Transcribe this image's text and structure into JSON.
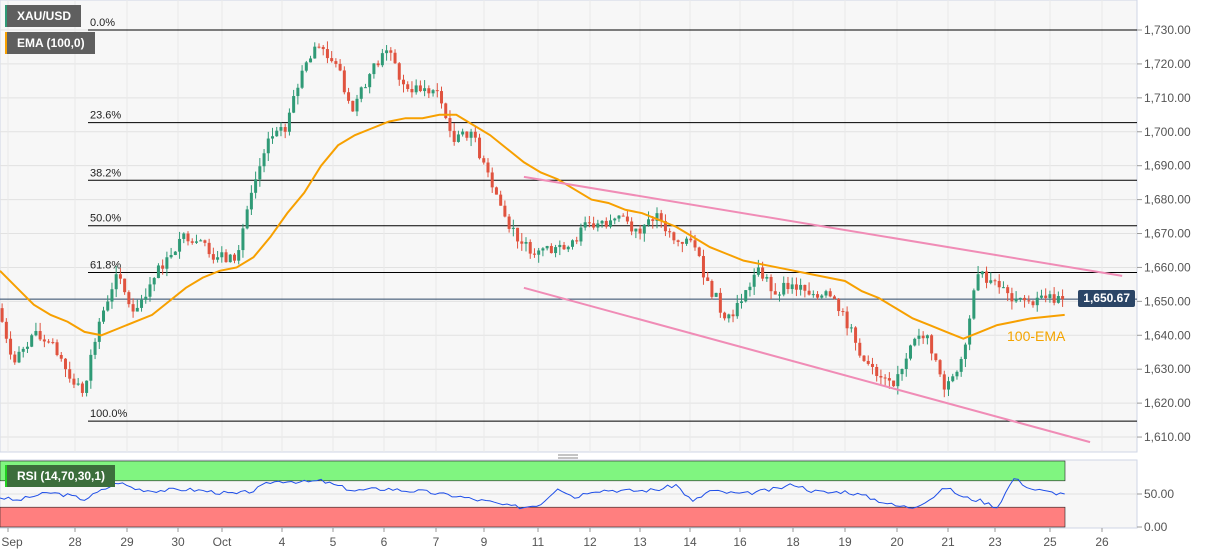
{
  "legend": {
    "symbol": "XAU/USD",
    "ema": "EMA (100,0)",
    "rsi": "RSI (14,70,30,1)",
    "ema_annotation": "100-EMA"
  },
  "colors": {
    "up": "#2f9a76",
    "down": "#e0533f",
    "ema": "#f7a000",
    "trendline": "#f08cb6",
    "rsi": "#1f4fe8",
    "overbought": "#80f580",
    "oversold": "#ff7f7f",
    "price_line": "#2b4566"
  },
  "chart_data": {
    "type": "candlestick",
    "symbol": "XAU/USD",
    "y_ticks": [
      "1,730.00",
      "1,720.00",
      "1,710.00",
      "1,700.00",
      "1,690.00",
      "1,680.00",
      "1,670.00",
      "1,660.00",
      "1,650.00",
      "1,640.00",
      "1,630.00",
      "1,620.00",
      "1,610.00"
    ],
    "ylim": [
      1605,
      1733
    ],
    "x_ticks": [
      "Sep",
      "28",
      "29",
      "30",
      "Oct",
      "4",
      "5",
      "6",
      "7",
      "9",
      "11",
      "12",
      "13",
      "14",
      "16",
      "18",
      "19",
      "20",
      "21",
      "23",
      "25",
      "26"
    ],
    "last_price": "1,650.67",
    "close": [
      1648,
      1632,
      1640,
      1638,
      1630,
      1623,
      1644,
      1658,
      1647,
      1655,
      1663,
      1670,
      1668,
      1663,
      1662,
      1682,
      1698,
      1700,
      1718,
      1725,
      1720,
      1706,
      1717,
      1724,
      1714,
      1712,
      1712,
      1697,
      1700,
      1688,
      1675,
      1667,
      1665,
      1666,
      1668,
      1673,
      1672,
      1675,
      1670,
      1676,
      1668,
      1668,
      1656,
      1645,
      1650,
      1660,
      1652,
      1655,
      1652,
      1653,
      1647,
      1634,
      1628,
      1625,
      1637,
      1640,
      1624,
      1633,
      1658,
      1656,
      1650,
      1650,
      1651,
      1650.67
    ],
    "ema_100": [
      1659,
      1654,
      1649,
      1646,
      1644,
      1641,
      1640,
      1642,
      1644,
      1646,
      1650,
      1654,
      1657,
      1659,
      1660,
      1663,
      1669,
      1676,
      1682,
      1690,
      1696,
      1699,
      1701,
      1703,
      1704,
      1704,
      1705,
      1705,
      1702,
      1699,
      1695,
      1691,
      1688,
      1686,
      1683,
      1680,
      1679,
      1677,
      1676,
      1674,
      1672,
      1669,
      1666,
      1664,
      1662,
      1661,
      1660,
      1659,
      1658,
      1657,
      1656,
      1653,
      1651,
      1648,
      1645,
      1643,
      1641,
      1639,
      1641,
      1643,
      1644,
      1645,
      1645.5,
      1646
    ],
    "fibonacci": [
      {
        "label": "0.0%",
        "price": 1730
      },
      {
        "label": "23.6%",
        "price": 1702.7
      },
      {
        "label": "38.2%",
        "price": 1685.7
      },
      {
        "label": "50.0%",
        "price": 1672.3
      },
      {
        "label": "61.8%",
        "price": 1658.5
      },
      {
        "label": "100.0%",
        "price": 1614.7
      }
    ],
    "trendlines": [
      {
        "name": "upper",
        "start_bar": 31,
        "start_price": 1686.7,
        "end_bar": 66.4,
        "end_price": 1657.5
      },
      {
        "name": "lower",
        "start_bar": 31,
        "start_price": 1654,
        "end_bar": 64.5,
        "end_price": 1608.5
      }
    ],
    "rsi": {
      "period": 14,
      "overbought": 70,
      "oversold": 30,
      "y_ticks": [
        "50.00",
        "0.00"
      ],
      "values": [
        45,
        40,
        47,
        52,
        48,
        42,
        55,
        68,
        58,
        55,
        56,
        57,
        55,
        52,
        50,
        55,
        68,
        70,
        68,
        70,
        62,
        55,
        57,
        58,
        55,
        54,
        50,
        47,
        42,
        38,
        32,
        30,
        35,
        60,
        45,
        55,
        56,
        55,
        55,
        57,
        64,
        38,
        55,
        52,
        50,
        54,
        58,
        65,
        55,
        52,
        54,
        48,
        40,
        32,
        30,
        42,
        60,
        45,
        40,
        30,
        74,
        58,
        53,
        50
      ]
    }
  }
}
